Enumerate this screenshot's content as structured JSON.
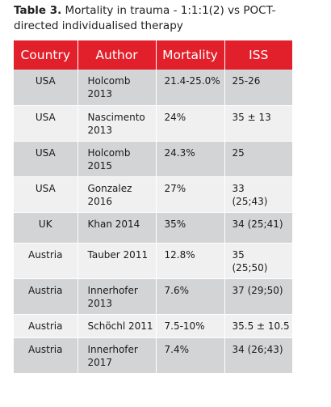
{
  "caption": {
    "label": "Table 3.",
    "text": " Mortality in trauma - 1:1:1(2) vs POCT-directed individualised therapy"
  },
  "table": {
    "headers": [
      "Country",
      "Author",
      "Mortality",
      "ISS"
    ],
    "rows": [
      {
        "country": "USA",
        "author_line1": "Holcomb",
        "author_line2": "2013",
        "mortality": "21.4-25.0%",
        "iss_line1": "25-26",
        "iss_line2": ""
      },
      {
        "country": "USA",
        "author_line1": "Nascimento",
        "author_line2": "2013",
        "mortality": "24%",
        "iss_line1": "35 ± 13",
        "iss_line2": ""
      },
      {
        "country": "USA",
        "author_line1": "Holcomb",
        "author_line2": "2015",
        "mortality": "24.3%",
        "iss_line1": "25",
        "iss_line2": ""
      },
      {
        "country": "USA",
        "author_line1": "Gonzalez",
        "author_line2": "2016",
        "mortality": "27%",
        "iss_line1": "33",
        "iss_line2": "(25;43)"
      },
      {
        "country": "UK",
        "author_line1": "Khan 2014",
        "author_line2": "",
        "mortality": "35%",
        "iss_line1": "34 (25;41)",
        "iss_line2": ""
      },
      {
        "country": "Austria",
        "author_line1": "Tauber 2011",
        "author_line2": "",
        "mortality": "12.8%",
        "iss_line1": "35",
        "iss_line2": "(25;50)"
      },
      {
        "country": "Austria",
        "author_line1": "Innerhofer",
        "author_line2": "2013",
        "mortality": "7.6%",
        "iss_line1": "37 (29;50)",
        "iss_line2": ""
      },
      {
        "country": "Austria",
        "author_line1": "Schöchl 2011",
        "author_line2": "",
        "mortality": "7.5-10%",
        "iss_line1": "35.5 ± 10.5",
        "iss_line2": ""
      },
      {
        "country": "Austria",
        "author_line1": "Innerhofer",
        "author_line2": "2017",
        "mortality": "7.4%",
        "iss_line1": "34 (26;43)",
        "iss_line2": ""
      }
    ]
  },
  "colors": {
    "header_bg": "#e2202b",
    "row_odd_bg": "#d3d4d5",
    "row_even_bg": "#f0f0f0"
  }
}
